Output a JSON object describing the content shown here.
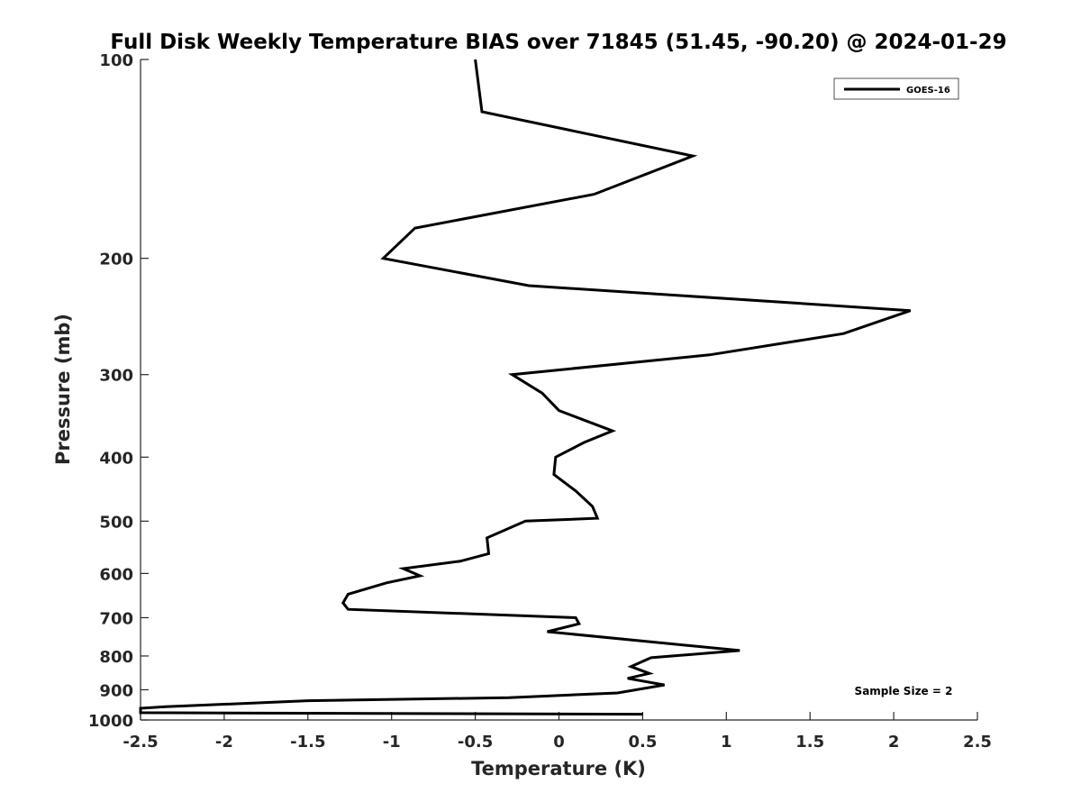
{
  "chart_data": {
    "type": "line",
    "title": "Full Disk Weekly Temperature BIAS over 71845 (51.45, -90.20) @ 2024-01-29",
    "xlabel": "Temperature (K)",
    "ylabel": "Pressure (mb)",
    "xlim": [
      -2.5,
      2.5
    ],
    "ylim": [
      100,
      1000
    ],
    "y_scale": "log",
    "y_reversed": true,
    "grid": false,
    "xticks": [
      -2.5,
      -2,
      -1.5,
      -1,
      -0.5,
      0,
      0.5,
      1,
      1.5,
      2,
      2.5
    ],
    "xtick_labels": [
      "-2.5",
      "-2",
      "-1.5",
      "-1",
      "-0.5",
      "0",
      "0.5",
      "1",
      "1.5",
      "2",
      "2.5"
    ],
    "yticks": [
      100,
      200,
      300,
      400,
      500,
      600,
      700,
      800,
      900,
      1000
    ],
    "ytick_labels": [
      "100",
      "200",
      "300",
      "400",
      "500",
      "600",
      "700",
      "800",
      "900",
      "1000"
    ],
    "legend_position": "top-right",
    "annotation": "Sample Size = 2",
    "series": [
      {
        "name": "GOES-16",
        "color": "#000000",
        "points": [
          {
            "x": -0.5,
            "p": 100
          },
          {
            "x": -0.46,
            "p": 120
          },
          {
            "x": 0.8,
            "p": 140
          },
          {
            "x": 0.21,
            "p": 160
          },
          {
            "x": -0.86,
            "p": 180
          },
          {
            "x": -1.05,
            "p": 200
          },
          {
            "x": -0.18,
            "p": 220
          },
          {
            "x": 2.1,
            "p": 240
          },
          {
            "x": 1.7,
            "p": 260
          },
          {
            "x": 0.9,
            "p": 280
          },
          {
            "x": -0.28,
            "p": 300
          },
          {
            "x": -0.1,
            "p": 320
          },
          {
            "x": 0.0,
            "p": 340
          },
          {
            "x": 0.32,
            "p": 365
          },
          {
            "x": 0.15,
            "p": 380
          },
          {
            "x": -0.02,
            "p": 400
          },
          {
            "x": -0.03,
            "p": 425
          },
          {
            "x": 0.1,
            "p": 450
          },
          {
            "x": 0.2,
            "p": 475
          },
          {
            "x": 0.23,
            "p": 495
          },
          {
            "x": -0.2,
            "p": 500
          },
          {
            "x": -0.43,
            "p": 530
          },
          {
            "x": -0.42,
            "p": 560
          },
          {
            "x": -0.59,
            "p": 575
          },
          {
            "x": -0.93,
            "p": 590
          },
          {
            "x": -0.83,
            "p": 605
          },
          {
            "x": -1.03,
            "p": 620
          },
          {
            "x": -1.26,
            "p": 645
          },
          {
            "x": -1.29,
            "p": 665
          },
          {
            "x": -1.26,
            "p": 680
          },
          {
            "x": 0.1,
            "p": 700
          },
          {
            "x": 0.12,
            "p": 715
          },
          {
            "x": -0.07,
            "p": 735
          },
          {
            "x": 1.08,
            "p": 785
          },
          {
            "x": 0.55,
            "p": 805
          },
          {
            "x": 0.43,
            "p": 830
          },
          {
            "x": 0.54,
            "p": 850
          },
          {
            "x": 0.41,
            "p": 865
          },
          {
            "x": 0.63,
            "p": 885
          },
          {
            "x": 0.35,
            "p": 910
          },
          {
            "x": -0.3,
            "p": 925
          },
          {
            "x": -1.5,
            "p": 935
          },
          {
            "x": -2.35,
            "p": 955
          },
          {
            "x": -2.5,
            "p": 960
          },
          {
            "x": -2.5,
            "p": 975
          },
          {
            "x": 0.5,
            "p": 980
          }
        ]
      }
    ]
  }
}
